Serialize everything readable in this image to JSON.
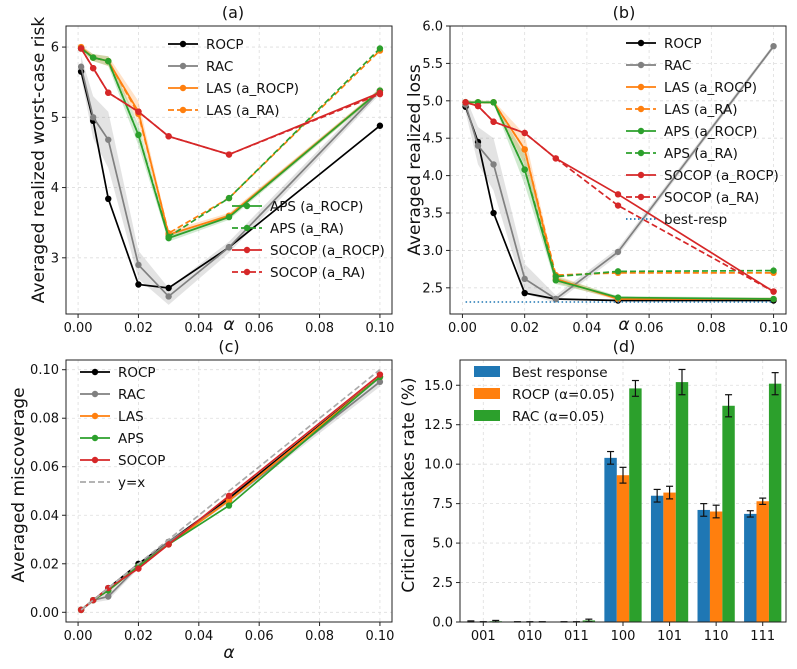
{
  "chart_data": [
    {
      "id": "a",
      "type": "line",
      "title": "(a)",
      "xlabel": "α",
      "ylabel": "Averaged realized worst-case risk",
      "xlim": [
        -0.004,
        0.104
      ],
      "ylim": [
        2.2,
        6.3
      ],
      "xticks": [
        0.0,
        0.02,
        0.04,
        0.06,
        0.08,
        0.1
      ],
      "xtick_labels": [
        "0.00",
        "0.02",
        "0.04",
        "0.06",
        "0.08",
        "0.10"
      ],
      "yticks": [
        3,
        4,
        5,
        6
      ],
      "ytick_labels": [
        "3",
        "4",
        "5",
        "6"
      ],
      "x": [
        0.001,
        0.005,
        0.01,
        0.02,
        0.03,
        0.05,
        0.1
      ],
      "series": [
        {
          "name": "ROCP",
          "color": "#000000",
          "dash": false,
          "values": [
            5.65,
            4.95,
            3.84,
            2.62,
            2.57,
            3.15,
            4.88
          ]
        },
        {
          "name": "RAC",
          "color": "#808080",
          "dash": false,
          "values": [
            5.72,
            5.0,
            4.68,
            2.9,
            2.45,
            3.15,
            5.38
          ],
          "band": [
            0.15,
            0.3,
            0.4,
            0.2,
            0.12,
            0.08,
            0.05
          ]
        },
        {
          "name": "LAS (a_ROCP)",
          "color": "#ff7f0e",
          "dash": false,
          "values": [
            6.0,
            5.85,
            5.8,
            5.08,
            3.33,
            3.6,
            5.38
          ],
          "band": [
            0.03,
            0.05,
            0.07,
            0.15,
            0.05,
            0.04,
            0.03
          ]
        },
        {
          "name": "LAS (a_RA)",
          "color": "#ff7f0e",
          "dash": true,
          "values": [
            5.98,
            5.85,
            5.8,
            5.05,
            3.35,
            3.85,
            5.95
          ]
        },
        {
          "name": "APS (a_ROCP)",
          "color": "#2ca02c",
          "dash": false,
          "values": [
            5.98,
            5.85,
            5.8,
            4.75,
            3.28,
            3.58,
            5.38
          ],
          "band": [
            0.03,
            0.05,
            0.07,
            0.15,
            0.05,
            0.04,
            0.03
          ]
        },
        {
          "name": "APS (a_RA)",
          "color": "#2ca02c",
          "dash": true,
          "values": [
            5.98,
            5.85,
            5.8,
            4.75,
            3.3,
            3.85,
            5.98
          ]
        },
        {
          "name": "SOCOP (a_ROCP)",
          "color": "#d62728",
          "dash": false,
          "values": [
            5.98,
            5.7,
            5.35,
            5.08,
            4.73,
            4.47,
            5.35
          ]
        },
        {
          "name": "SOCOP (a_RA)",
          "color": "#d62728",
          "dash": true,
          "values": [
            5.98,
            5.7,
            5.35,
            5.08,
            4.73,
            4.47,
            5.33
          ]
        }
      ],
      "legend": [
        {
          "group": "upper",
          "items": [
            "ROCP",
            "RAC",
            "LAS (a_ROCP)",
            "LAS (a_RA)"
          ]
        },
        {
          "group": "lower",
          "items": [
            "APS (a_ROCP)",
            "APS (a_RA)",
            "SOCOP (a_ROCP)",
            "SOCOP (a_RA)"
          ]
        }
      ]
    },
    {
      "id": "b",
      "type": "line",
      "title": "(b)",
      "xlabel": "α",
      "ylabel": "Averaged realized loss",
      "xlim": [
        -0.004,
        0.104
      ],
      "ylim": [
        2.15,
        6.0
      ],
      "xticks": [
        0.0,
        0.02,
        0.04,
        0.06,
        0.08,
        0.1
      ],
      "xtick_labels": [
        "0.00",
        "0.02",
        "0.04",
        "0.06",
        "0.08",
        "0.10"
      ],
      "yticks": [
        2.5,
        3.0,
        3.5,
        4.0,
        4.5,
        5.0,
        5.5,
        6.0
      ],
      "ytick_labels": [
        "2.5",
        "3.0",
        "3.5",
        "4.0",
        "4.5",
        "5.0",
        "5.5",
        "6.0"
      ],
      "x": [
        0.001,
        0.005,
        0.01,
        0.02,
        0.03,
        0.05,
        0.1
      ],
      "series": [
        {
          "name": "ROCP",
          "color": "#000000",
          "dash": false,
          "values": [
            4.92,
            4.45,
            3.5,
            2.43,
            2.35,
            2.33,
            2.33
          ]
        },
        {
          "name": "RAC",
          "color": "#808080",
          "dash": false,
          "values": [
            4.95,
            4.4,
            4.15,
            2.62,
            2.35,
            2.98,
            5.73
          ],
          "band": [
            0.1,
            0.25,
            0.35,
            0.2,
            0.05,
            0.05,
            0.03
          ]
        },
        {
          "name": "LAS (a_ROCP)",
          "color": "#ff7f0e",
          "dash": false,
          "values": [
            4.98,
            4.98,
            4.98,
            4.35,
            2.62,
            2.35,
            2.35
          ],
          "band": [
            0.02,
            0.02,
            0.02,
            0.2,
            0.05,
            0.02,
            0.02
          ]
        },
        {
          "name": "LAS (a_RA)",
          "color": "#ff7f0e",
          "dash": true,
          "values": [
            4.98,
            4.98,
            4.98,
            4.35,
            2.67,
            2.7,
            2.7
          ]
        },
        {
          "name": "APS (a_ROCP)",
          "color": "#2ca02c",
          "dash": false,
          "values": [
            4.98,
            4.98,
            4.98,
            4.08,
            2.6,
            2.37,
            2.35
          ],
          "band": [
            0.02,
            0.02,
            0.02,
            0.2,
            0.05,
            0.02,
            0.02
          ]
        },
        {
          "name": "APS (a_RA)",
          "color": "#2ca02c",
          "dash": true,
          "values": [
            4.98,
            4.98,
            4.98,
            4.08,
            2.65,
            2.72,
            2.73
          ]
        },
        {
          "name": "SOCOP (a_ROCP)",
          "color": "#d62728",
          "dash": false,
          "values": [
            4.98,
            4.93,
            4.72,
            4.57,
            4.23,
            3.75,
            2.45
          ]
        },
        {
          "name": "SOCOP (a_RA)",
          "color": "#d62728",
          "dash": true,
          "values": [
            4.98,
            4.93,
            4.72,
            4.57,
            4.23,
            3.6,
            2.45
          ]
        },
        {
          "name": "best-resp",
          "color": "#1f77b4",
          "dotted": true,
          "nomarker": true,
          "xfull": true,
          "values": [
            2.31,
            2.31,
            2.31,
            2.31,
            2.31,
            2.31,
            2.31
          ]
        }
      ],
      "legend": [
        {
          "group": "upper",
          "items": [
            "ROCP",
            "RAC",
            "LAS (a_ROCP)",
            "LAS (a_RA)",
            "APS (a_ROCP)",
            "APS (a_RA)",
            "SOCOP (a_ROCP)",
            "SOCOP (a_RA)",
            "best-resp"
          ]
        }
      ]
    },
    {
      "id": "c",
      "type": "line",
      "title": "(c)",
      "xlabel": "α",
      "ylabel": "Averaged miscoverage",
      "xlim": [
        -0.004,
        0.104
      ],
      "ylim": [
        -0.004,
        0.104
      ],
      "xticks": [
        0.0,
        0.02,
        0.04,
        0.06,
        0.08,
        0.1
      ],
      "xtick_labels": [
        "0.00",
        "0.02",
        "0.04",
        "0.06",
        "0.08",
        "0.10"
      ],
      "yticks": [
        0.0,
        0.02,
        0.04,
        0.06,
        0.08,
        0.1
      ],
      "ytick_labels": [
        "0.00",
        "0.02",
        "0.04",
        "0.06",
        "0.08",
        "0.10"
      ],
      "x": [
        0.001,
        0.005,
        0.01,
        0.02,
        0.03,
        0.05,
        0.1
      ],
      "series": [
        {
          "name": "ROCP",
          "color": "#000000",
          "dash": false,
          "values": [
            0.001,
            0.005,
            0.01,
            0.02,
            0.029,
            0.047,
            0.097
          ]
        },
        {
          "name": "RAC",
          "color": "#808080",
          "dash": false,
          "values": [
            0.001,
            0.005,
            0.0065,
            0.019,
            0.029,
            0.046,
            0.095
          ],
          "band": [
            0.0005,
            0.001,
            0.0015,
            0.001,
            0.001,
            0.001,
            0.002
          ]
        },
        {
          "name": "LAS",
          "color": "#ff7f0e",
          "dash": false,
          "values": [
            0.001,
            0.005,
            0.009,
            0.019,
            0.028,
            0.046,
            0.097
          ]
        },
        {
          "name": "APS",
          "color": "#2ca02c",
          "dash": false,
          "values": [
            0.001,
            0.005,
            0.009,
            0.019,
            0.028,
            0.044,
            0.097
          ]
        },
        {
          "name": "SOCOP",
          "color": "#d62728",
          "dash": false,
          "values": [
            0.001,
            0.005,
            0.01,
            0.018,
            0.028,
            0.048,
            0.098
          ]
        },
        {
          "name": "y=x",
          "color": "#aaaaaa",
          "dash": true,
          "nomarker": true,
          "xfull": true,
          "values": [
            0.001,
            0.005,
            0.01,
            0.02,
            0.03,
            0.05,
            0.1
          ]
        }
      ],
      "legend": [
        {
          "group": "upper",
          "items": [
            "ROCP",
            "RAC",
            "LAS",
            "APS",
            "SOCOP",
            "y=x"
          ]
        }
      ]
    },
    {
      "id": "d",
      "type": "bar",
      "title": "(d)",
      "xlabel": "",
      "ylabel": "Critical mistakes rate (%)",
      "ylim": [
        0,
        16.6
      ],
      "yticks": [
        0.0,
        2.5,
        5.0,
        7.5,
        10.0,
        12.5,
        15.0
      ],
      "ytick_labels": [
        "0.0",
        "2.5",
        "5.0",
        "7.5",
        "10.0",
        "12.5",
        "15.0"
      ],
      "categories": [
        "001",
        "010",
        "011",
        "100",
        "101",
        "110",
        "111"
      ],
      "series": [
        {
          "name": "Best response",
          "color": "#1f77b4",
          "values": [
            0.02,
            0.0,
            0.0,
            10.4,
            8.0,
            7.1,
            6.85
          ],
          "errors": [
            0.05,
            0.02,
            0.02,
            0.4,
            0.4,
            0.4,
            0.2
          ]
        },
        {
          "name": "ROCP (α=0.05)",
          "color": "#ff7f0e",
          "values": [
            0.0,
            0.0,
            0.0,
            9.3,
            8.2,
            7.0,
            7.65
          ],
          "errors": [
            0.02,
            0.02,
            0.02,
            0.5,
            0.4,
            0.4,
            0.2
          ]
        },
        {
          "name": "RAC (α=0.05)",
          "color": "#2ca02c",
          "values": [
            0.05,
            0.0,
            0.1,
            14.8,
            15.2,
            13.7,
            15.1
          ],
          "errors": [
            0.05,
            0.02,
            0.08,
            0.5,
            0.8,
            0.7,
            0.7
          ]
        }
      ],
      "legend": [
        {
          "group": "upper",
          "items": [
            "Best response",
            "ROCP (α=0.05)",
            "RAC (α=0.05)"
          ]
        }
      ]
    }
  ]
}
